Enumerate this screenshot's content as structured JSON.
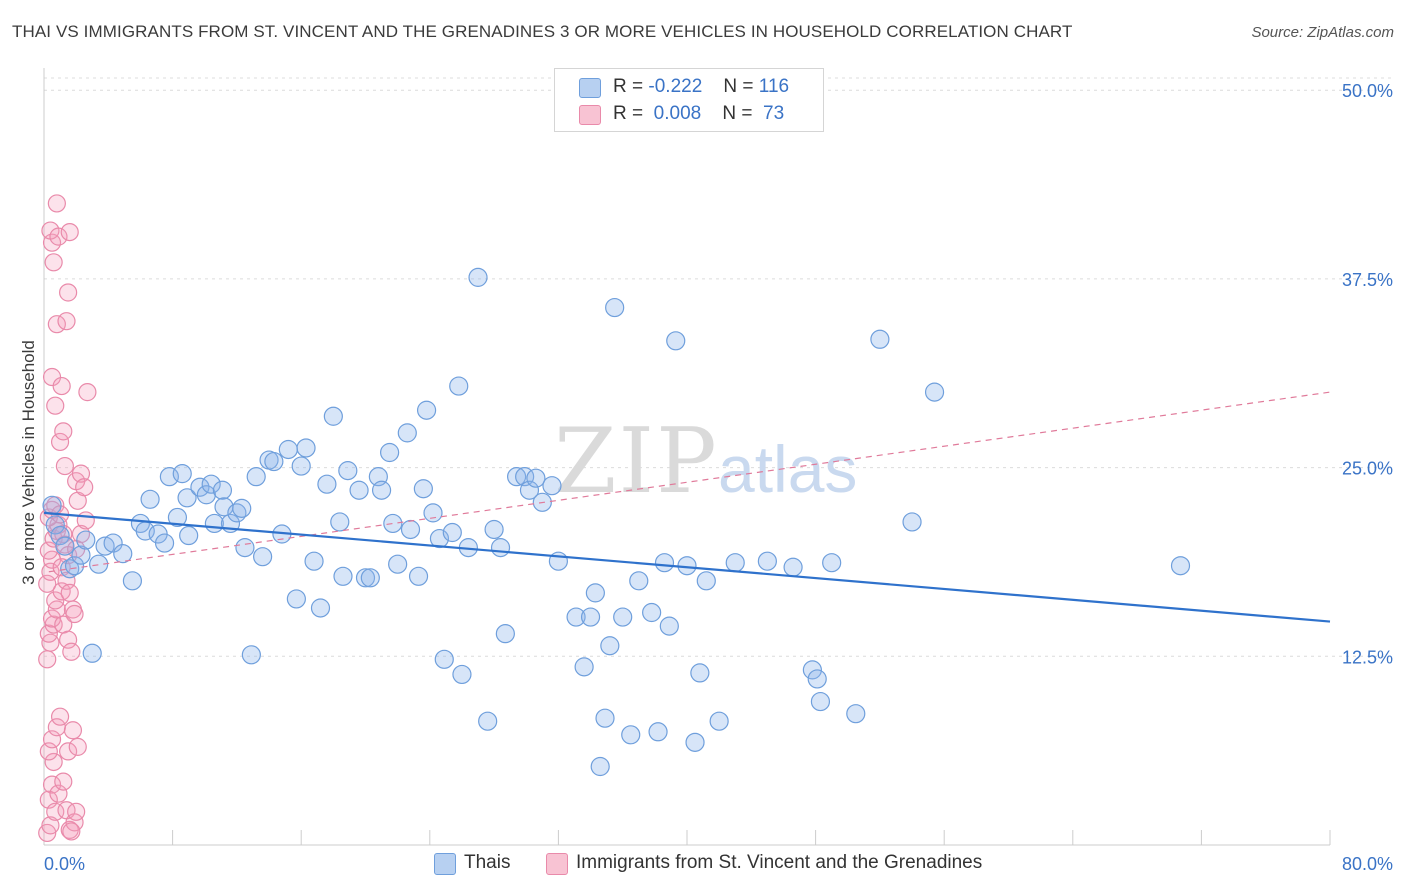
{
  "title": "THAI VS IMMIGRANTS FROM ST. VINCENT AND THE GRENADINES 3 OR MORE VEHICLES IN HOUSEHOLD CORRELATION CHART",
  "source": "Source: ZipAtlas.com",
  "watermark": {
    "zip": "ZIP",
    "atlas": "atlas"
  },
  "legend": {
    "series1": {
      "r_label": "R =",
      "r_value": "-0.222",
      "n_label": "N =",
      "n_value": "116"
    },
    "series2": {
      "r_label": "R =",
      "r_value": "0.008",
      "n_label": "N =",
      "n_value": "73"
    }
  },
  "colors": {
    "thais_fill": "rgba(140,180,235,0.35)",
    "thais_stroke": "#6f9fdc",
    "thais_line": "#2f72cc",
    "svg_fill": "rgba(245,160,190,0.30)",
    "svg_stroke": "#e98aaa",
    "svg_line": "#e07a9a",
    "axis_label": "#3a73c6",
    "grid": "#dcdcdc"
  },
  "chart_data": {
    "type": "scatter",
    "title": "THAI VS IMMIGRANTS FROM ST. VINCENT AND THE GRENADINES 3 OR MORE VEHICLES IN HOUSEHOLD CORRELATION CHART",
    "xlabel": "",
    "ylabel": "3 or more Vehicles in Household",
    "xlim": [
      0,
      80
    ],
    "ylim": [
      0,
      52
    ],
    "x_tick_labels": [
      "0.0%",
      "80.0%"
    ],
    "y_ticks": [
      12.5,
      25.0,
      37.5,
      50.0
    ],
    "y_tick_labels": [
      "12.5%",
      "25.0%",
      "37.5%",
      "50.0%"
    ],
    "grid": "horizontal dashed",
    "legend_placement": "top-center and bottom",
    "series": [
      {
        "name": "Thais",
        "trend": {
          "x": [
            0,
            80
          ],
          "y": [
            22.0,
            14.8
          ]
        },
        "points": [
          [
            0.5,
            22.5
          ],
          [
            0.7,
            21.2
          ],
          [
            1.0,
            20.5
          ],
          [
            1.3,
            19.8
          ],
          [
            1.6,
            18.3
          ],
          [
            1.9,
            18.5
          ],
          [
            2.3,
            19.2
          ],
          [
            2.6,
            20.2
          ],
          [
            3.0,
            12.7
          ],
          [
            3.4,
            18.6
          ],
          [
            3.8,
            19.8
          ],
          [
            4.3,
            20.0
          ],
          [
            4.9,
            19.3
          ],
          [
            5.5,
            17.5
          ],
          [
            6.0,
            21.3
          ],
          [
            6.3,
            20.8
          ],
          [
            6.6,
            22.9
          ],
          [
            7.1,
            20.6
          ],
          [
            7.5,
            20.0
          ],
          [
            7.8,
            24.4
          ],
          [
            8.3,
            21.7
          ],
          [
            8.6,
            24.6
          ],
          [
            8.9,
            23.0
          ],
          [
            9.0,
            20.5
          ],
          [
            9.7,
            23.7
          ],
          [
            10.1,
            23.2
          ],
          [
            10.4,
            23.9
          ],
          [
            10.6,
            21.3
          ],
          [
            11.1,
            23.5
          ],
          [
            11.2,
            22.4
          ],
          [
            11.6,
            21.3
          ],
          [
            12.0,
            22.0
          ],
          [
            12.3,
            22.3
          ],
          [
            12.5,
            19.7
          ],
          [
            12.9,
            12.6
          ],
          [
            13.2,
            24.4
          ],
          [
            13.6,
            19.1
          ],
          [
            14.0,
            25.5
          ],
          [
            14.3,
            25.4
          ],
          [
            14.8,
            20.6
          ],
          [
            15.2,
            26.2
          ],
          [
            15.7,
            16.3
          ],
          [
            16.0,
            25.1
          ],
          [
            16.3,
            26.3
          ],
          [
            16.8,
            18.8
          ],
          [
            17.2,
            15.7
          ],
          [
            17.6,
            23.9
          ],
          [
            18.0,
            28.4
          ],
          [
            18.4,
            21.4
          ],
          [
            18.6,
            17.8
          ],
          [
            18.9,
            24.8
          ],
          [
            19.6,
            23.5
          ],
          [
            20.0,
            17.7
          ],
          [
            20.3,
            17.7
          ],
          [
            20.8,
            24.4
          ],
          [
            21.0,
            23.5
          ],
          [
            21.5,
            26.0
          ],
          [
            21.7,
            21.3
          ],
          [
            22.0,
            18.6
          ],
          [
            22.6,
            27.3
          ],
          [
            22.8,
            20.9
          ],
          [
            23.3,
            17.8
          ],
          [
            23.6,
            23.6
          ],
          [
            23.8,
            28.8
          ],
          [
            24.2,
            22.0
          ],
          [
            24.6,
            20.3
          ],
          [
            24.9,
            12.3
          ],
          [
            25.4,
            20.7
          ],
          [
            25.8,
            30.4
          ],
          [
            26.0,
            11.3
          ],
          [
            26.4,
            19.7
          ],
          [
            27.0,
            37.6
          ],
          [
            27.6,
            8.2
          ],
          [
            28.0,
            20.9
          ],
          [
            28.4,
            19.7
          ],
          [
            28.7,
            14.0
          ],
          [
            29.4,
            24.4
          ],
          [
            29.9,
            24.4
          ],
          [
            30.2,
            23.5
          ],
          [
            30.6,
            24.3
          ],
          [
            31.0,
            22.7
          ],
          [
            31.6,
            23.8
          ],
          [
            32.0,
            18.8
          ],
          [
            33.1,
            15.1
          ],
          [
            33.6,
            11.8
          ],
          [
            34.0,
            15.1
          ],
          [
            34.3,
            16.7
          ],
          [
            34.6,
            5.2
          ],
          [
            34.9,
            8.4
          ],
          [
            35.2,
            13.2
          ],
          [
            35.5,
            35.6
          ],
          [
            36.0,
            15.1
          ],
          [
            36.5,
            7.3
          ],
          [
            37.0,
            17.5
          ],
          [
            37.8,
            15.4
          ],
          [
            38.2,
            7.5
          ],
          [
            38.6,
            18.7
          ],
          [
            38.9,
            14.5
          ],
          [
            39.3,
            33.4
          ],
          [
            40.0,
            18.5
          ],
          [
            40.5,
            6.8
          ],
          [
            40.8,
            11.4
          ],
          [
            41.2,
            17.5
          ],
          [
            42.0,
            8.2
          ],
          [
            43.0,
            18.7
          ],
          [
            45.0,
            18.8
          ],
          [
            46.6,
            18.4
          ],
          [
            47.8,
            11.6
          ],
          [
            48.1,
            11.0
          ],
          [
            48.3,
            9.5
          ],
          [
            49.0,
            18.7
          ],
          [
            50.5,
            8.7
          ],
          [
            52.0,
            33.5
          ],
          [
            54.0,
            21.4
          ],
          [
            55.4,
            30.0
          ],
          [
            70.7,
            18.5
          ]
        ]
      },
      {
        "name": "Immigrants from St. Vincent and the Grenadines",
        "trend": {
          "x": [
            0.3,
            80
          ],
          "y": [
            18.1,
            30.0
          ]
        },
        "points": [
          [
            0.2,
            0.8
          ],
          [
            0.4,
            1.3
          ],
          [
            0.5,
            4.0
          ],
          [
            0.6,
            5.5
          ],
          [
            0.3,
            6.2
          ],
          [
            0.5,
            7.0
          ],
          [
            0.8,
            7.8
          ],
          [
            1.0,
            8.5
          ],
          [
            0.3,
            3.0
          ],
          [
            0.7,
            2.2
          ],
          [
            0.9,
            3.4
          ],
          [
            1.2,
            4.2
          ],
          [
            1.4,
            2.3
          ],
          [
            1.6,
            1.0
          ],
          [
            1.8,
            7.6
          ],
          [
            1.5,
            6.2
          ],
          [
            1.9,
            1.5
          ],
          [
            1.7,
            0.9
          ],
          [
            2.0,
            2.2
          ],
          [
            2.1,
            6.5
          ],
          [
            0.2,
            12.3
          ],
          [
            0.4,
            13.4
          ],
          [
            0.3,
            14.0
          ],
          [
            0.6,
            14.6
          ],
          [
            0.5,
            15.0
          ],
          [
            0.8,
            15.6
          ],
          [
            0.7,
            16.2
          ],
          [
            1.1,
            16.8
          ],
          [
            0.2,
            17.3
          ],
          [
            0.4,
            18.1
          ],
          [
            0.5,
            18.9
          ],
          [
            0.3,
            19.5
          ],
          [
            0.6,
            20.3
          ],
          [
            0.8,
            20.8
          ],
          [
            0.9,
            21.2
          ],
          [
            0.3,
            21.7
          ],
          [
            0.5,
            22.2
          ],
          [
            0.7,
            22.5
          ],
          [
            1.0,
            21.9
          ],
          [
            1.2,
            20.6
          ],
          [
            1.3,
            19.9
          ],
          [
            1.5,
            19.2
          ],
          [
            1.1,
            18.4
          ],
          [
            1.4,
            17.5
          ],
          [
            1.6,
            16.7
          ],
          [
            1.8,
            15.6
          ],
          [
            1.2,
            14.6
          ],
          [
            1.5,
            13.6
          ],
          [
            1.7,
            12.8
          ],
          [
            1.3,
            25.1
          ],
          [
            1.0,
            26.7
          ],
          [
            1.2,
            27.4
          ],
          [
            0.7,
            29.1
          ],
          [
            0.5,
            31.0
          ],
          [
            1.1,
            30.4
          ],
          [
            2.0,
            24.1
          ],
          [
            2.1,
            22.8
          ],
          [
            2.3,
            24.6
          ],
          [
            2.5,
            23.7
          ],
          [
            2.7,
            30.0
          ],
          [
            0.8,
            34.5
          ],
          [
            1.4,
            34.7
          ],
          [
            1.5,
            36.6
          ],
          [
            0.6,
            38.6
          ],
          [
            0.5,
            39.9
          ],
          [
            0.4,
            40.7
          ],
          [
            0.9,
            40.3
          ],
          [
            1.6,
            40.6
          ],
          [
            0.8,
            42.5
          ],
          [
            2.3,
            20.6
          ],
          [
            2.6,
            21.5
          ],
          [
            2.0,
            19.6
          ],
          [
            1.9,
            15.3
          ]
        ]
      }
    ]
  },
  "bottom_legend": {
    "thais": "Thais",
    "svg": "Immigrants from St. Vincent and the Grenadines"
  }
}
